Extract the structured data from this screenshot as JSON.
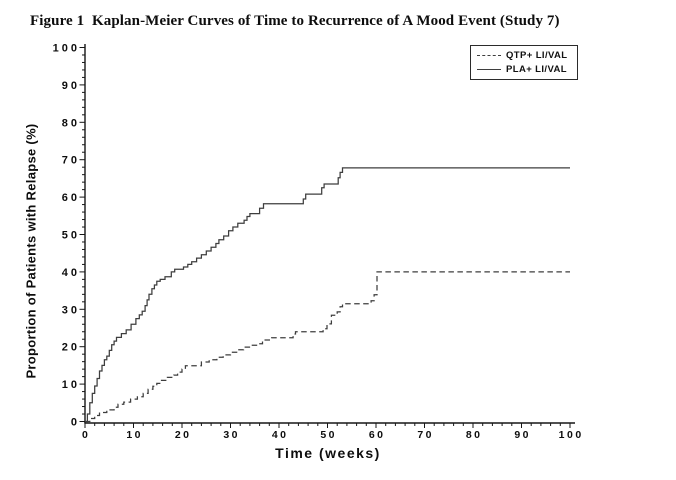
{
  "figure": {
    "title": "Figure 1  Kaplan-Meier Curves of Time to Recurrence of A Mood Event (Study 7)"
  },
  "chart_data": {
    "type": "line",
    "subtype": "kaplan-meier-step",
    "title": "Figure 1  Kaplan-Meier Curves of Time to Recurrence of A Mood Event (Study 7)",
    "xlabel": "Time (weeks)",
    "ylabel": "Proportion of Patients with Relapse (%)",
    "xlim": [
      0,
      100
    ],
    "ylim": [
      0,
      100
    ],
    "x_major_ticks": [
      0,
      10,
      20,
      30,
      40,
      50,
      60,
      70,
      80,
      90,
      100
    ],
    "y_major_ticks": [
      0,
      10,
      20,
      30,
      40,
      50,
      60,
      70,
      80,
      90,
      100
    ],
    "x_minor_tick_interval": 2,
    "y_minor_tick_interval": 2,
    "grid": false,
    "legend": {
      "position": "top-right-inside",
      "entries": [
        {
          "label": "QTP+ LI/VAL",
          "style": "dashed"
        },
        {
          "label": "PLA+ LI/VAL",
          "style": "solid"
        }
      ]
    },
    "series": [
      {
        "name": "QTP+ LI/VAL",
        "style": "dashed",
        "final_value": 40,
        "points": [
          [
            0,
            0
          ],
          [
            1,
            0.8
          ],
          [
            2,
            1.6
          ],
          [
            3,
            2.4
          ],
          [
            4.5,
            3.1
          ],
          [
            6,
            3.8
          ],
          [
            6.8,
            4.6
          ],
          [
            8,
            5.2
          ],
          [
            9.4,
            6
          ],
          [
            10.8,
            6.6
          ],
          [
            12,
            7.5
          ],
          [
            13,
            8.6
          ],
          [
            14,
            9.4
          ],
          [
            14.8,
            10.2
          ],
          [
            15.6,
            11
          ],
          [
            17,
            11.8
          ],
          [
            18.3,
            12.4
          ],
          [
            19.1,
            13.2
          ],
          [
            20,
            14
          ],
          [
            20.7,
            14.9
          ],
          [
            24,
            15.9
          ],
          [
            25.6,
            16.5
          ],
          [
            27.2,
            17.2
          ],
          [
            28.5,
            17.8
          ],
          [
            30,
            18.5
          ],
          [
            31.4,
            19.2
          ],
          [
            32.7,
            19.9
          ],
          [
            34.1,
            20.4
          ],
          [
            35.5,
            20.8
          ],
          [
            36.6,
            21.8
          ],
          [
            38.5,
            22.4
          ],
          [
            42.9,
            23.4
          ],
          [
            43.4,
            24
          ],
          [
            49.1,
            24.8
          ],
          [
            49.9,
            26.1
          ],
          [
            50.8,
            28.4
          ],
          [
            52,
            29.3
          ],
          [
            52.6,
            30.7
          ],
          [
            53.1,
            31.5
          ],
          [
            59,
            32.3
          ],
          [
            59.6,
            33.9
          ],
          [
            60.2,
            40
          ],
          [
            100,
            40
          ]
        ]
      },
      {
        "name": "PLA+ LI/VAL",
        "style": "solid",
        "final_value": 68,
        "points": [
          [
            0,
            0
          ],
          [
            0.5,
            2
          ],
          [
            1,
            5
          ],
          [
            1.5,
            7.5
          ],
          [
            2,
            9.5
          ],
          [
            2.5,
            11.5
          ],
          [
            3,
            13.5
          ],
          [
            3.5,
            15
          ],
          [
            4,
            16.5
          ],
          [
            4.5,
            17.5
          ],
          [
            5,
            19
          ],
          [
            5.5,
            20.5
          ],
          [
            6,
            21.5
          ],
          [
            6.5,
            22.5
          ],
          [
            7.5,
            23.5
          ],
          [
            8.5,
            24.5
          ],
          [
            9.5,
            26
          ],
          [
            10.5,
            27.5
          ],
          [
            11.2,
            28.5
          ],
          [
            11.8,
            29.5
          ],
          [
            12.4,
            31
          ],
          [
            12.8,
            32.5
          ],
          [
            13.2,
            34
          ],
          [
            13.8,
            35.5
          ],
          [
            14.3,
            36.5
          ],
          [
            14.8,
            37.5
          ],
          [
            15.5,
            38
          ],
          [
            16.5,
            38.7
          ],
          [
            17.8,
            40
          ],
          [
            18.5,
            40.7
          ],
          [
            20.3,
            41.3
          ],
          [
            21.2,
            42
          ],
          [
            22,
            42.7
          ],
          [
            23,
            43.7
          ],
          [
            24,
            44.6
          ],
          [
            25,
            45.6
          ],
          [
            26,
            46.6
          ],
          [
            27,
            47.6
          ],
          [
            27.6,
            48.6
          ],
          [
            28.6,
            49.6
          ],
          [
            29.6,
            51
          ],
          [
            30.5,
            52
          ],
          [
            31.5,
            53
          ],
          [
            32.8,
            53.8
          ],
          [
            33.4,
            54.8
          ],
          [
            34,
            55.6
          ],
          [
            36,
            57
          ],
          [
            36.8,
            58.2
          ],
          [
            45,
            59.5
          ],
          [
            45.5,
            60.8
          ],
          [
            48.8,
            62.5
          ],
          [
            49.3,
            63.5
          ],
          [
            52.2,
            65.2
          ],
          [
            52.6,
            66.6
          ],
          [
            53.1,
            67.8
          ],
          [
            100,
            67.8
          ]
        ]
      }
    ],
    "colors": {
      "curve": "#3e3e3e",
      "axis": "#161616",
      "text": "#0d0d0d",
      "background": "#ffffff",
      "legend_border": "#2b2b2b"
    }
  }
}
